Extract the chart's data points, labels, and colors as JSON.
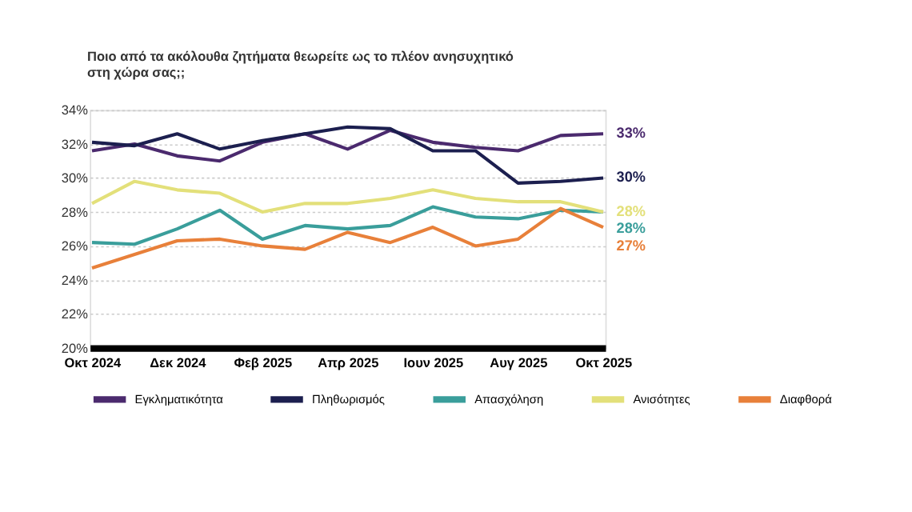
{
  "chart_data": {
    "type": "line",
    "title": "Ποιο από τα ακόλουθα ζητήματα θεωρείτε ως το πλέον ανησυχητικό\nστη χώρα σας;;",
    "categories": [
      "Οκτ 2024",
      null,
      "Δεκ 2024",
      null,
      "Φεβ 2025",
      null,
      "Απρ 2025",
      null,
      "Ιουν 2025",
      null,
      "Αυγ 2025",
      null,
      "Οκτ 2025"
    ],
    "series": [
      {
        "name": "Εγκληματικότητα",
        "color": "#4b2a6e",
        "values": [
          31.6,
          32.0,
          31.3,
          31.0,
          32.1,
          32.6,
          31.7,
          32.8,
          32.1,
          31.8,
          31.6,
          32.5,
          32.6
        ],
        "value_labels": [
          null,
          null,
          null,
          null,
          null,
          null,
          null,
          null,
          null,
          null,
          null,
          null,
          "33%"
        ]
      },
      {
        "name": "Πληθωρισμός",
        "color": "#1c1f4f",
        "values": [
          32.1,
          31.9,
          32.6,
          31.7,
          32.2,
          32.6,
          33.0,
          32.9,
          31.6,
          31.6,
          29.7,
          29.8,
          30.0
        ],
        "value_labels": [
          null,
          null,
          null,
          null,
          null,
          null,
          null,
          null,
          null,
          null,
          null,
          null,
          "30%"
        ]
      },
      {
        "name": "Απασχόληση",
        "color": "#3a9e9b",
        "values": [
          26.2,
          26.1,
          27.0,
          28.1,
          26.4,
          27.2,
          27.0,
          27.2,
          28.3,
          27.7,
          27.6,
          28.1,
          28.0
        ],
        "value_labels": [
          null,
          null,
          null,
          null,
          null,
          null,
          null,
          null,
          null,
          null,
          null,
          null,
          "28%"
        ]
      },
      {
        "name": "Ανισότητες",
        "color": "#e3e07a",
        "values": [
          28.5,
          29.8,
          29.3,
          29.1,
          28.0,
          28.5,
          28.5,
          28.8,
          29.3,
          28.8,
          28.6,
          28.6,
          28.0
        ],
        "value_labels": [
          null,
          null,
          null,
          null,
          null,
          null,
          null,
          null,
          null,
          null,
          null,
          null,
          "28%"
        ]
      },
      {
        "name": "Διαφθορά",
        "color": "#e8803a",
        "values": [
          24.7,
          25.5,
          26.3,
          26.4,
          26.0,
          25.8,
          26.8,
          26.2,
          27.1,
          26.0,
          26.4,
          28.2,
          27.1
        ],
        "value_labels": [
          null,
          null,
          null,
          null,
          null,
          null,
          null,
          null,
          null,
          null,
          null,
          null,
          "27%"
        ]
      }
    ],
    "ylim": [
      20,
      34
    ],
    "yticks": [
      {
        "value": 20,
        "label": "20%"
      },
      {
        "value": 22,
        "label": "22%"
      },
      {
        "value": 24,
        "label": "24%"
      },
      {
        "value": 26,
        "label": "26%"
      },
      {
        "value": 28,
        "label": "28%"
      },
      {
        "value": 30,
        "label": "30%"
      },
      {
        "value": 32,
        "label": "32%"
      },
      {
        "value": 34,
        "label": "34%"
      }
    ],
    "grid": "y",
    "legend": "bottom",
    "marker": "none",
    "line_style": "solid"
  }
}
